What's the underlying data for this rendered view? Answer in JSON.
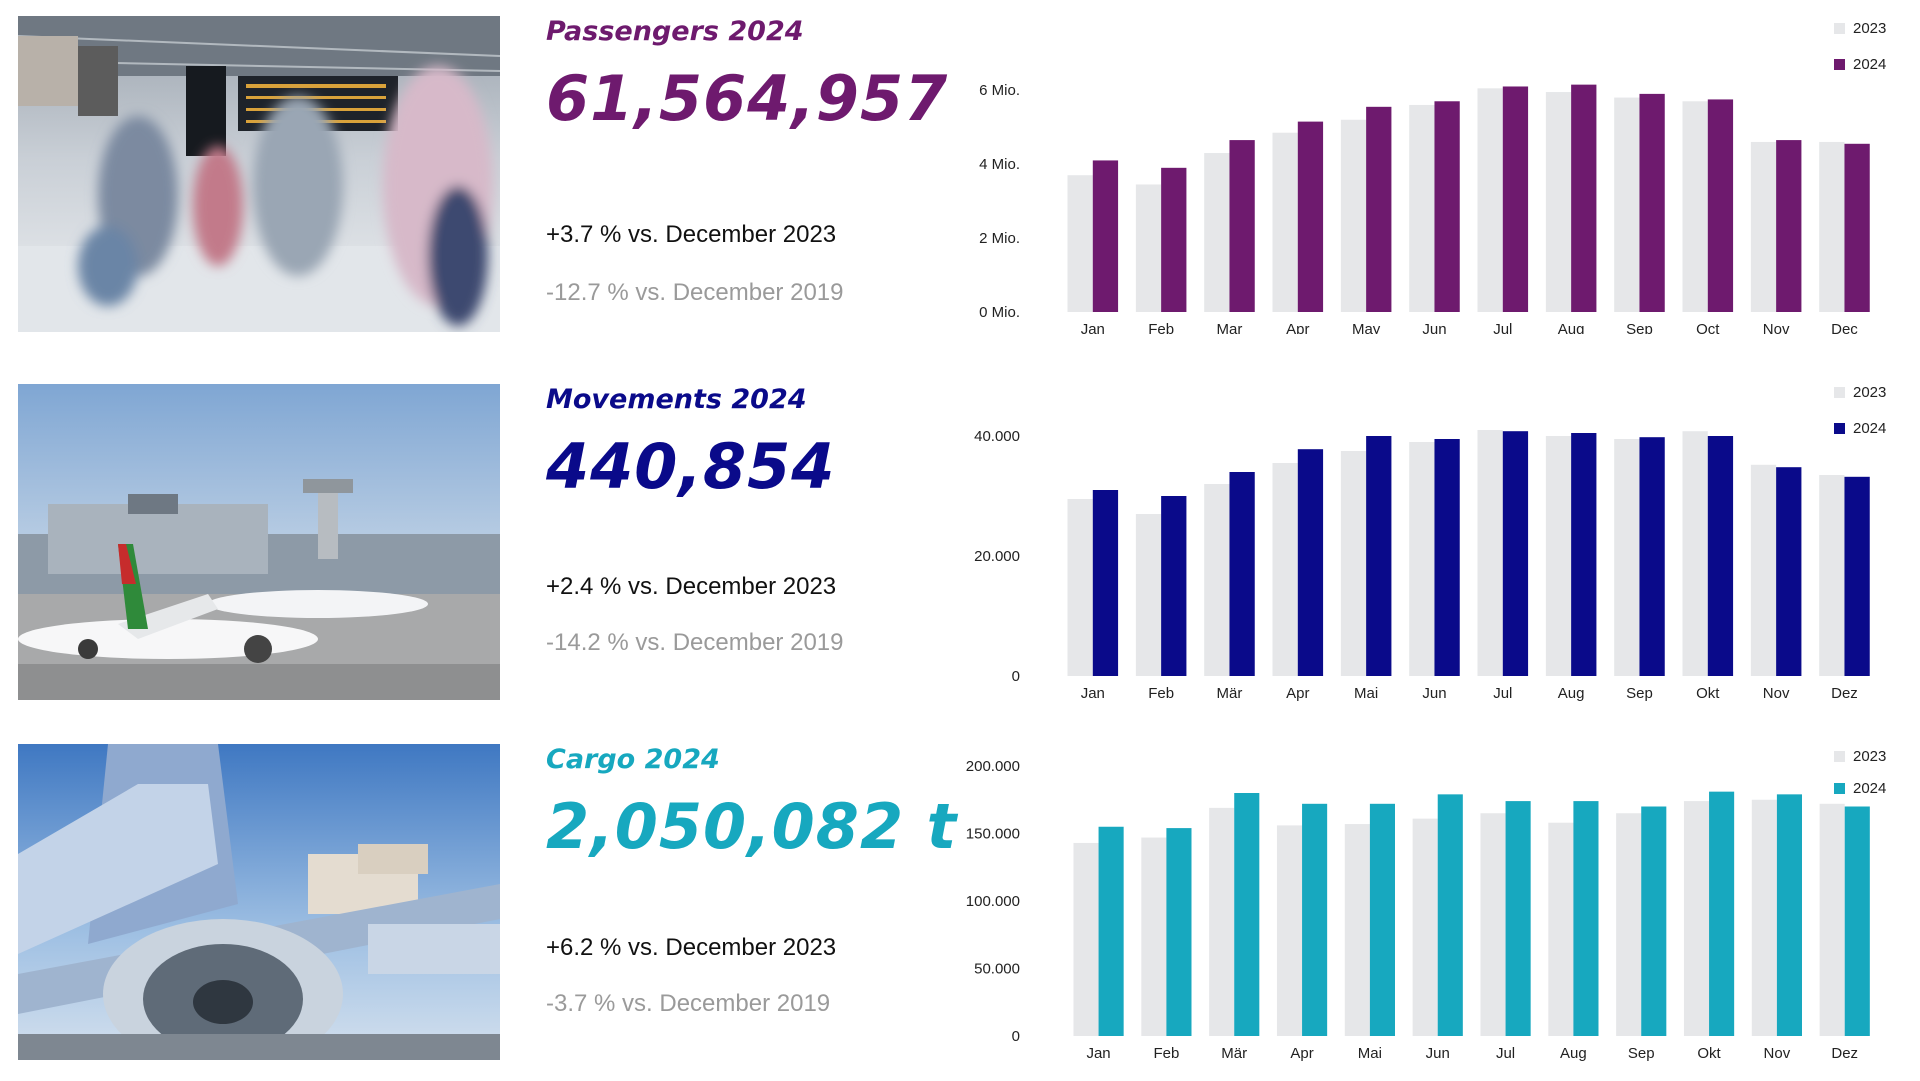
{
  "sections": [
    {
      "id": "passengers",
      "label": "Passengers 2024",
      "value": "61,564,957",
      "vs_prev": "+3.7 % vs. December 2023",
      "vs_2019": "-12.7 % vs. December 2019",
      "color": "#6e1a6e",
      "legend": [
        "2023",
        "2024"
      ],
      "photo_icon": "airport-terminal-photo"
    },
    {
      "id": "movements",
      "label": "Movements 2024",
      "value": "440,854",
      "vs_prev": "+2.4 % vs. December 2023",
      "vs_2019": "-14.2 % vs. December 2019",
      "color": "#0a0a8a",
      "legend": [
        "2023",
        "2024"
      ],
      "photo_icon": "airport-apron-photo"
    },
    {
      "id": "cargo",
      "label": "Cargo 2024",
      "value": "2,050,082 t",
      "vs_prev": "+6.2 % vs. December 2023",
      "vs_2019": "-3.7 % vs. December 2019",
      "color": "#17a8bf",
      "legend": [
        "2023",
        "2024"
      ],
      "photo_icon": "cargo-aircraft-photo"
    }
  ],
  "colors": {
    "prev_year": "#e6e7e9"
  },
  "chart_data": [
    {
      "type": "bar",
      "categories": [
        "Jan",
        "Feb",
        "Mar",
        "Apr",
        "May",
        "Jun",
        "Jul",
        "Aug",
        "Sep",
        "Oct",
        "Nov",
        "Dec"
      ],
      "series": [
        {
          "name": "2023",
          "values": [
            3.7,
            3.45,
            4.3,
            4.85,
            5.2,
            5.6,
            6.05,
            5.95,
            5.8,
            5.7,
            4.6,
            4.6
          ]
        },
        {
          "name": "2024",
          "values": [
            4.1,
            3.9,
            4.65,
            5.15,
            5.55,
            5.7,
            6.1,
            6.15,
            5.9,
            5.75,
            4.65,
            4.55
          ]
        }
      ],
      "yticks": [
        "0 Mio.",
        "2 Mio.",
        "4 Mio.",
        "6 Mio."
      ],
      "ytick_values": [
        0,
        2,
        4,
        6
      ],
      "ylim": [
        0,
        6.6
      ],
      "grid": false,
      "legend": "top-right"
    },
    {
      "type": "bar",
      "categories": [
        "Jan",
        "Feb",
        "Mär",
        "Apr",
        "Mai",
        "Jun",
        "Jul",
        "Aug",
        "Sep",
        "Okt",
        "Nov",
        "Dez"
      ],
      "series": [
        {
          "name": "2023",
          "values": [
            29500,
            27000,
            32000,
            35500,
            37500,
            39000,
            41000,
            40000,
            39500,
            40800,
            35200,
            33500
          ]
        },
        {
          "name": "2024",
          "values": [
            31000,
            30000,
            34000,
            37800,
            40000,
            39500,
            40800,
            40500,
            39800,
            40000,
            34800,
            33200
          ]
        }
      ],
      "yticks": [
        "0",
        "20.000",
        "40.000"
      ],
      "ytick_values": [
        0,
        20000,
        40000
      ],
      "ylim": [
        0,
        42000
      ],
      "grid": false,
      "legend": "top-right"
    },
    {
      "type": "bar",
      "categories": [
        "Jan",
        "Feb",
        "Mär",
        "Apr",
        "Mai",
        "Jun",
        "Jul",
        "Aug",
        "Sep",
        "Okt",
        "Nov",
        "Dez"
      ],
      "series": [
        {
          "name": "2023",
          "values": [
            143000,
            147000,
            169000,
            156000,
            157000,
            161000,
            165000,
            158000,
            165000,
            174000,
            175000,
            172000
          ]
        },
        {
          "name": "2024",
          "values": [
            155000,
            154000,
            180000,
            172000,
            172000,
            179000,
            174000,
            174000,
            170000,
            181000,
            179000,
            170000
          ]
        }
      ],
      "yticks": [
        "0",
        "50.000",
        "100.000",
        "150.000",
        "200.000"
      ],
      "ytick_values": [
        0,
        50000,
        100000,
        150000,
        200000
      ],
      "ylim": [
        0,
        200000
      ],
      "grid": false,
      "legend": "top-right"
    }
  ]
}
